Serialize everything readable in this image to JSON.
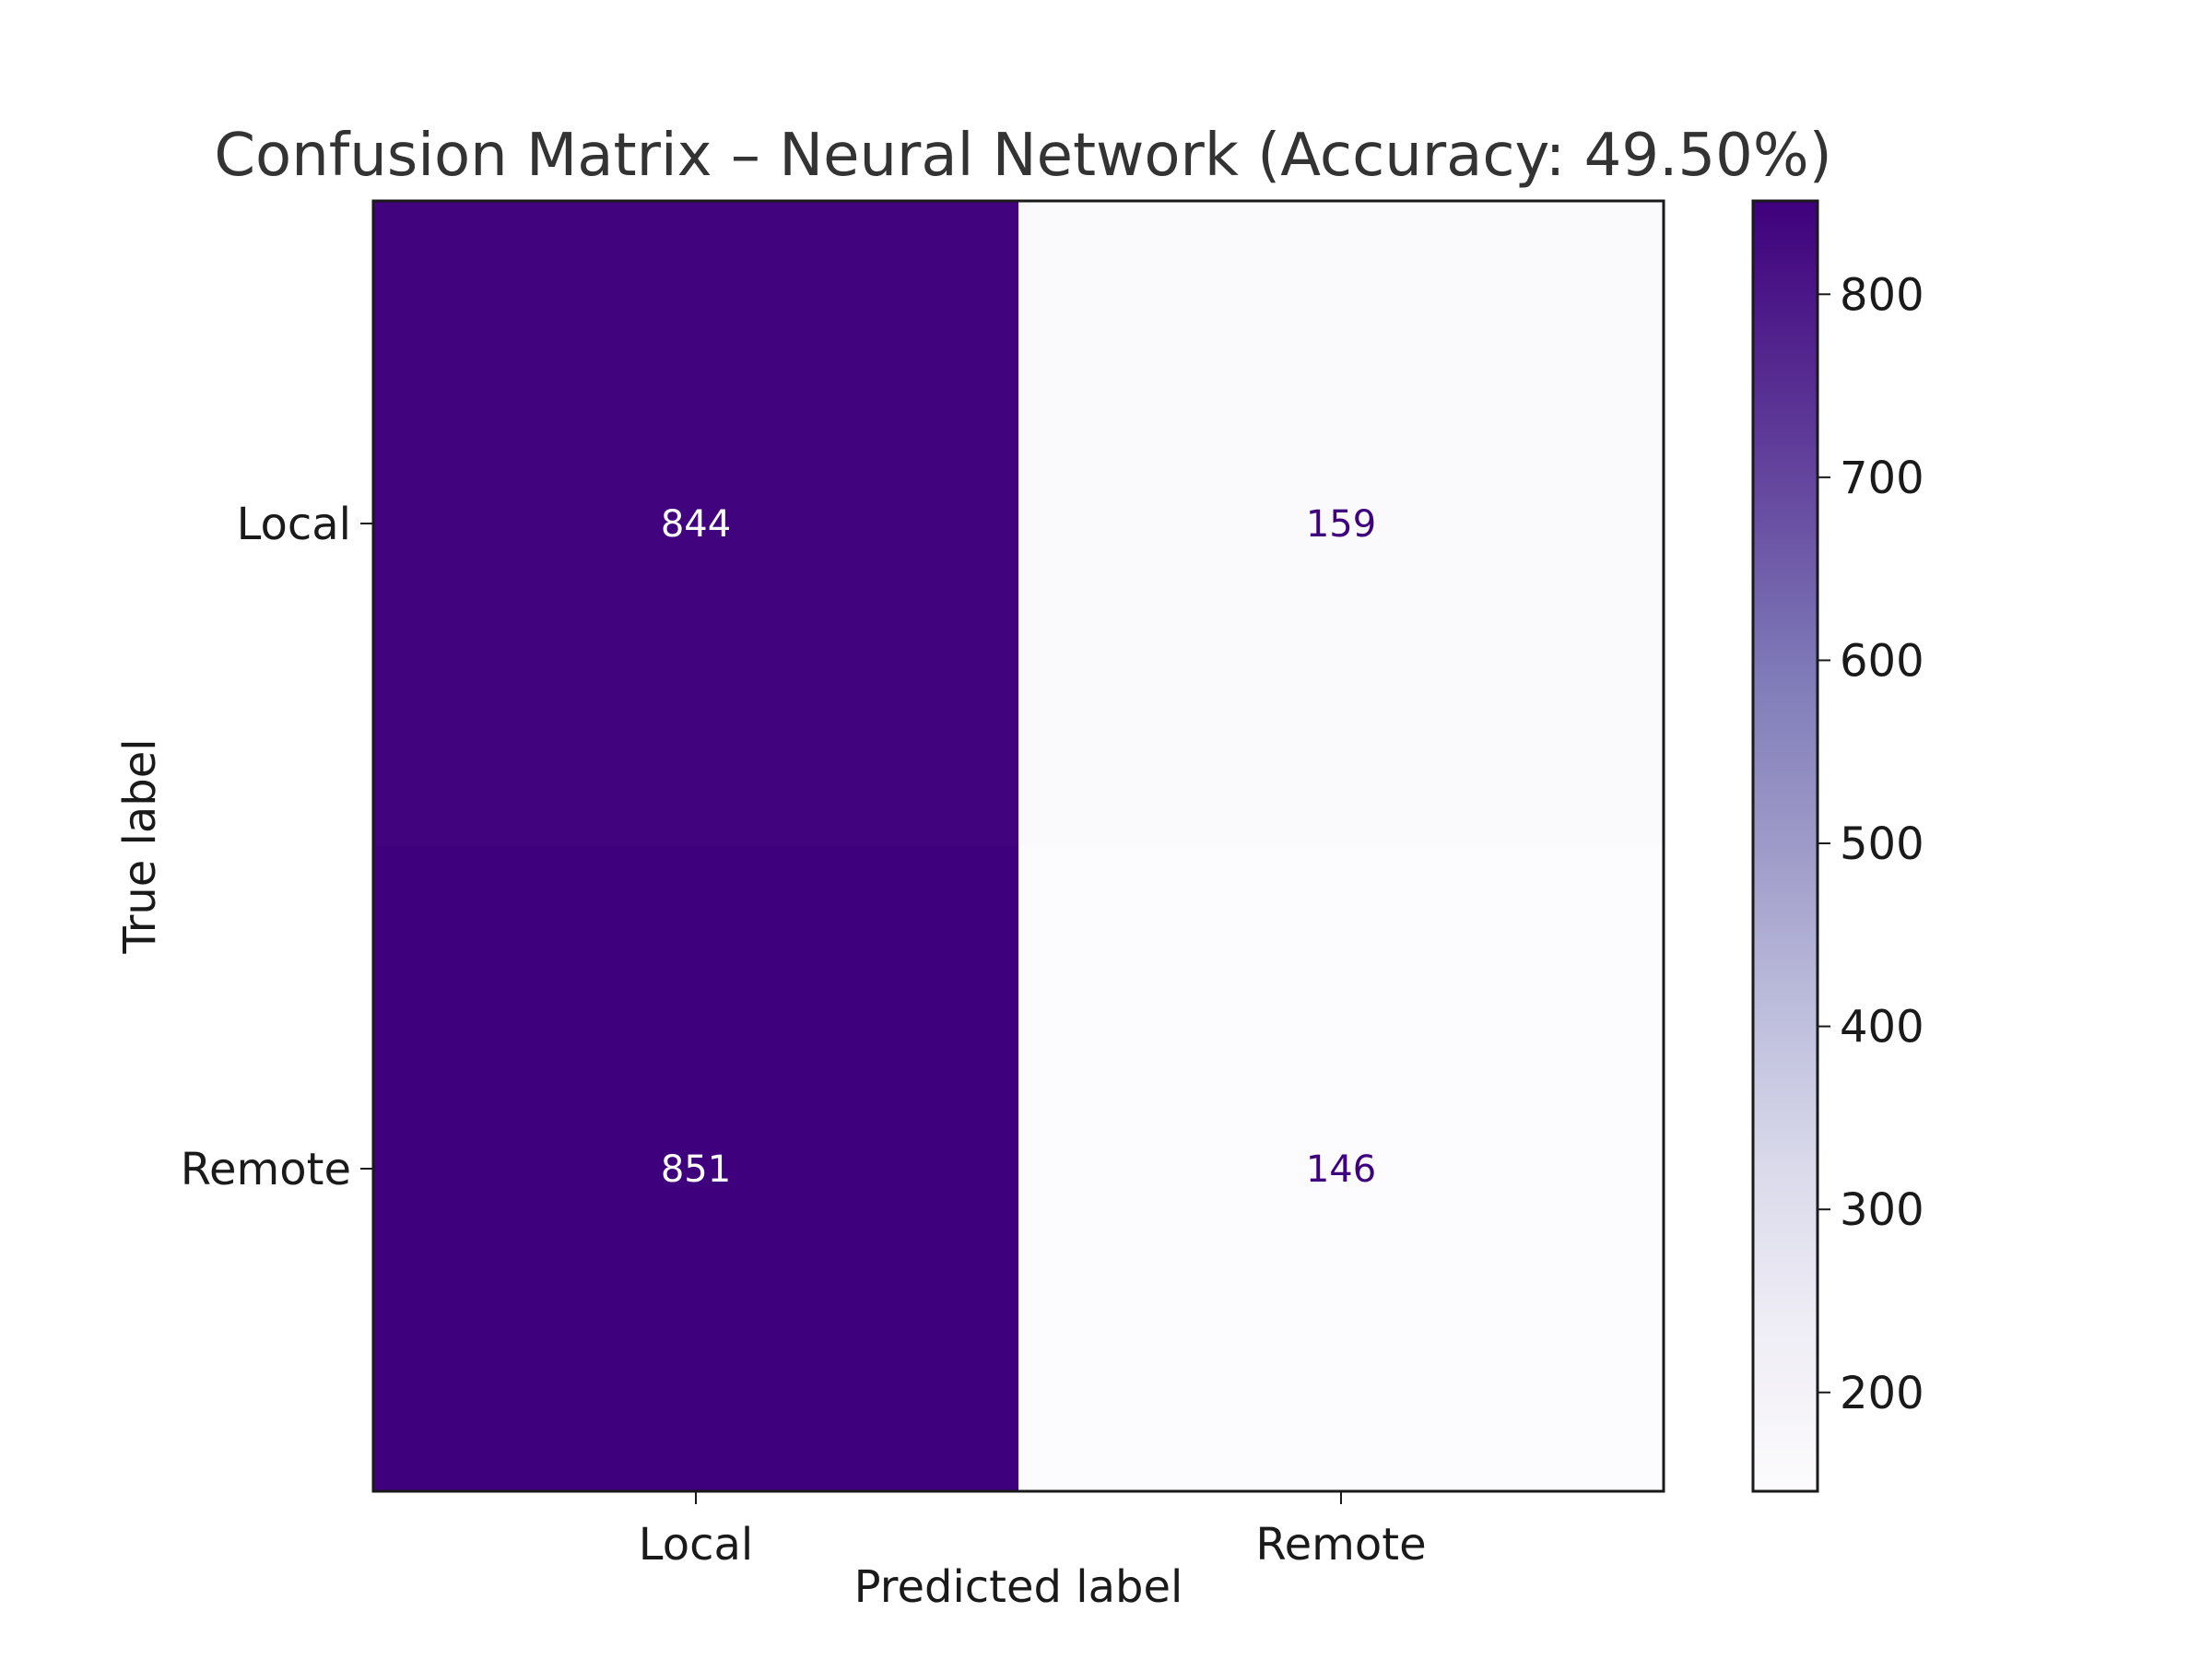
{
  "chart_data": {
    "type": "heatmap",
    "title": "Confusion Matrix – Neural Network (Accuracy: 49.50%)",
    "xlabel": "Predicted label",
    "ylabel": "True label",
    "x_categories": [
      "Local",
      "Remote"
    ],
    "y_categories": [
      "Local",
      "Remote"
    ],
    "matrix": [
      [
        844,
        159
      ],
      [
        851,
        146
      ]
    ],
    "colormap": "Purples",
    "color_low": "#fcfbfd",
    "color_high": "#3f007d",
    "colorbar": {
      "min": 146,
      "max": 851,
      "ticks": [
        200,
        300,
        400,
        500,
        600,
        700,
        800
      ]
    }
  }
}
